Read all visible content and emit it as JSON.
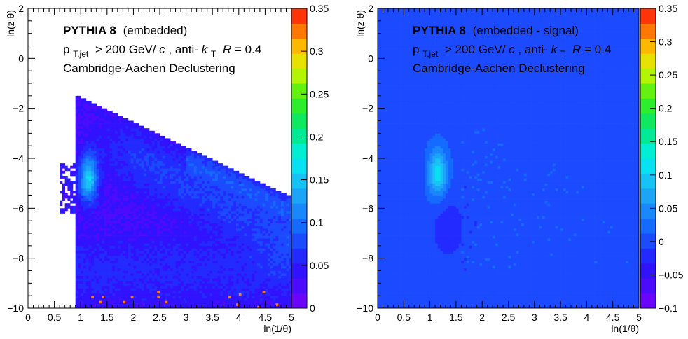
{
  "chart_data": [
    {
      "type": "heatmap",
      "title": "",
      "xlabel": "ln(1/θ)",
      "ylabel": "ln(z θ)",
      "xlim": [
        0,
        5
      ],
      "ylim": [
        -10,
        2
      ],
      "x_ticks": [
        "0",
        "0.5",
        "1",
        "1.5",
        "2",
        "2.5",
        "3",
        "3.5",
        "4",
        "4.5",
        "5"
      ],
      "y_ticks": [
        "2",
        "0",
        "−2",
        "−4",
        "−6",
        "−8",
        "−10"
      ],
      "zlim": [
        0,
        0.35
      ],
      "z_ticks": [
        "0.35",
        "0.3",
        "0.25",
        "0.2",
        "0.15",
        "0.1",
        "0.05",
        "0"
      ],
      "annotation": {
        "generator": "PYTHIA 8",
        "sample": "(embedded)",
        "pt_symbol": "p",
        "pt_subscript": "T,jet",
        "pt_cut": "> 200 GeV/",
        "pt_unit": "c",
        "algo_prefix": ", anti-",
        "algo_k": "k",
        "algo_sub": "T",
        "radius_symbol": "R",
        "radius": " = 0.4",
        "declustering": "Cambridge-Aachen Declustering"
      },
      "features": [
        {
          "kind": "hotspot",
          "x": 1.15,
          "y": -4.8,
          "z": 0.14
        },
        {
          "kind": "ridge",
          "x_from": 3.0,
          "x_to": 4.9,
          "z": 0.11
        },
        {
          "kind": "band",
          "y_from": -10,
          "y_to": -6.5,
          "z": 0.05
        }
      ],
      "grid": false
    },
    {
      "type": "heatmap",
      "title": "",
      "xlabel": "ln(1/θ)",
      "ylabel": "ln(z θ)",
      "xlim": [
        0,
        5
      ],
      "ylim": [
        -10,
        2
      ],
      "x_ticks": [
        "0",
        "0.5",
        "1",
        "1.5",
        "2",
        "2.5",
        "3",
        "3.5",
        "4",
        "4.5",
        "5"
      ],
      "y_ticks": [
        "2",
        "0",
        "−2",
        "−4",
        "−6",
        "−8",
        "−10"
      ],
      "zlim": [
        -0.1,
        0.35
      ],
      "z_ticks": [
        "0.35",
        "0.3",
        "0.25",
        "0.2",
        "0.15",
        "0.1",
        "0.05",
        "0",
        "−0.05",
        "−0.1"
      ],
      "annotation": {
        "generator": "PYTHIA 8",
        "sample": "(embedded - signal)",
        "pt_symbol": "p",
        "pt_subscript": "T,jet",
        "pt_cut": "> 200 GeV/",
        "pt_unit": "c",
        "algo_prefix": ", anti-",
        "algo_k": "k",
        "algo_sub": "T",
        "radius_symbol": "R",
        "radius": " = 0.4",
        "declustering": "Cambridge-Aachen Declustering"
      },
      "features": [
        {
          "kind": "hotspot",
          "x": 1.15,
          "y": -4.6,
          "z": 0.11
        },
        {
          "kind": "deficit",
          "x": 1.3,
          "y": -6.8,
          "z": -0.03
        },
        {
          "kind": "background",
          "z": 0
        }
      ],
      "grid": false
    }
  ]
}
